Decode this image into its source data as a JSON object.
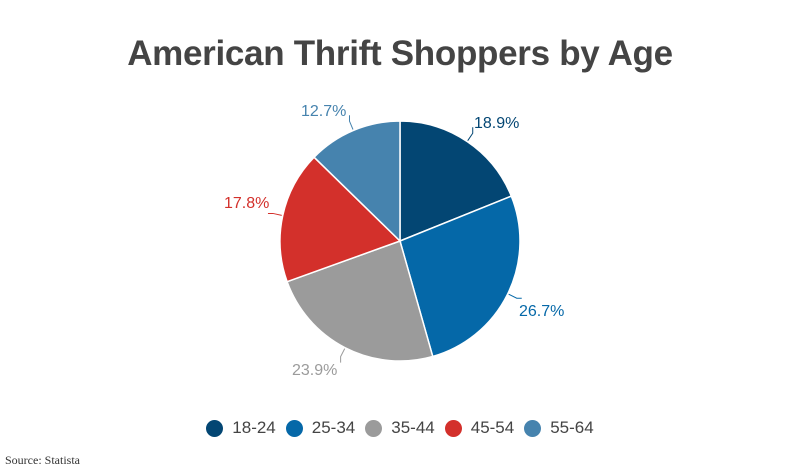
{
  "title": "American Thrift Shoppers by Age",
  "source": "Source: Statista",
  "chart_data": {
    "type": "pie",
    "title": "American Thrift Shoppers by Age",
    "start_angle": "12 o'clock, clockwise",
    "slices": [
      {
        "label": "18-24",
        "value": 18.9,
        "display": "18.9%",
        "color": "#034673"
      },
      {
        "label": "25-34",
        "value": 26.7,
        "display": "26.7%",
        "color": "#0568A8"
      },
      {
        "label": "35-44",
        "value": 23.9,
        "display": "23.9%",
        "color": "#9B9B9B"
      },
      {
        "label": "45-54",
        "value": 17.8,
        "display": "17.8%",
        "color": "#D3302B"
      },
      {
        "label": "55-64",
        "value": 12.7,
        "display": "12.7%",
        "color": "#4683AE"
      }
    ],
    "legend_position": "bottom",
    "source": "Statista"
  },
  "legend": [
    {
      "label": "18-24",
      "color": "#034673"
    },
    {
      "label": "25-34",
      "color": "#0568A8"
    },
    {
      "label": "35-44",
      "color": "#9B9B9B"
    },
    {
      "label": "45-54",
      "color": "#D3302B"
    },
    {
      "label": "55-64",
      "color": "#4683AE"
    }
  ],
  "labels": {
    "s0": "18.9%",
    "s1": "26.7%",
    "s2": "23.9%",
    "s3": "17.8%",
    "s4": "12.7%"
  }
}
